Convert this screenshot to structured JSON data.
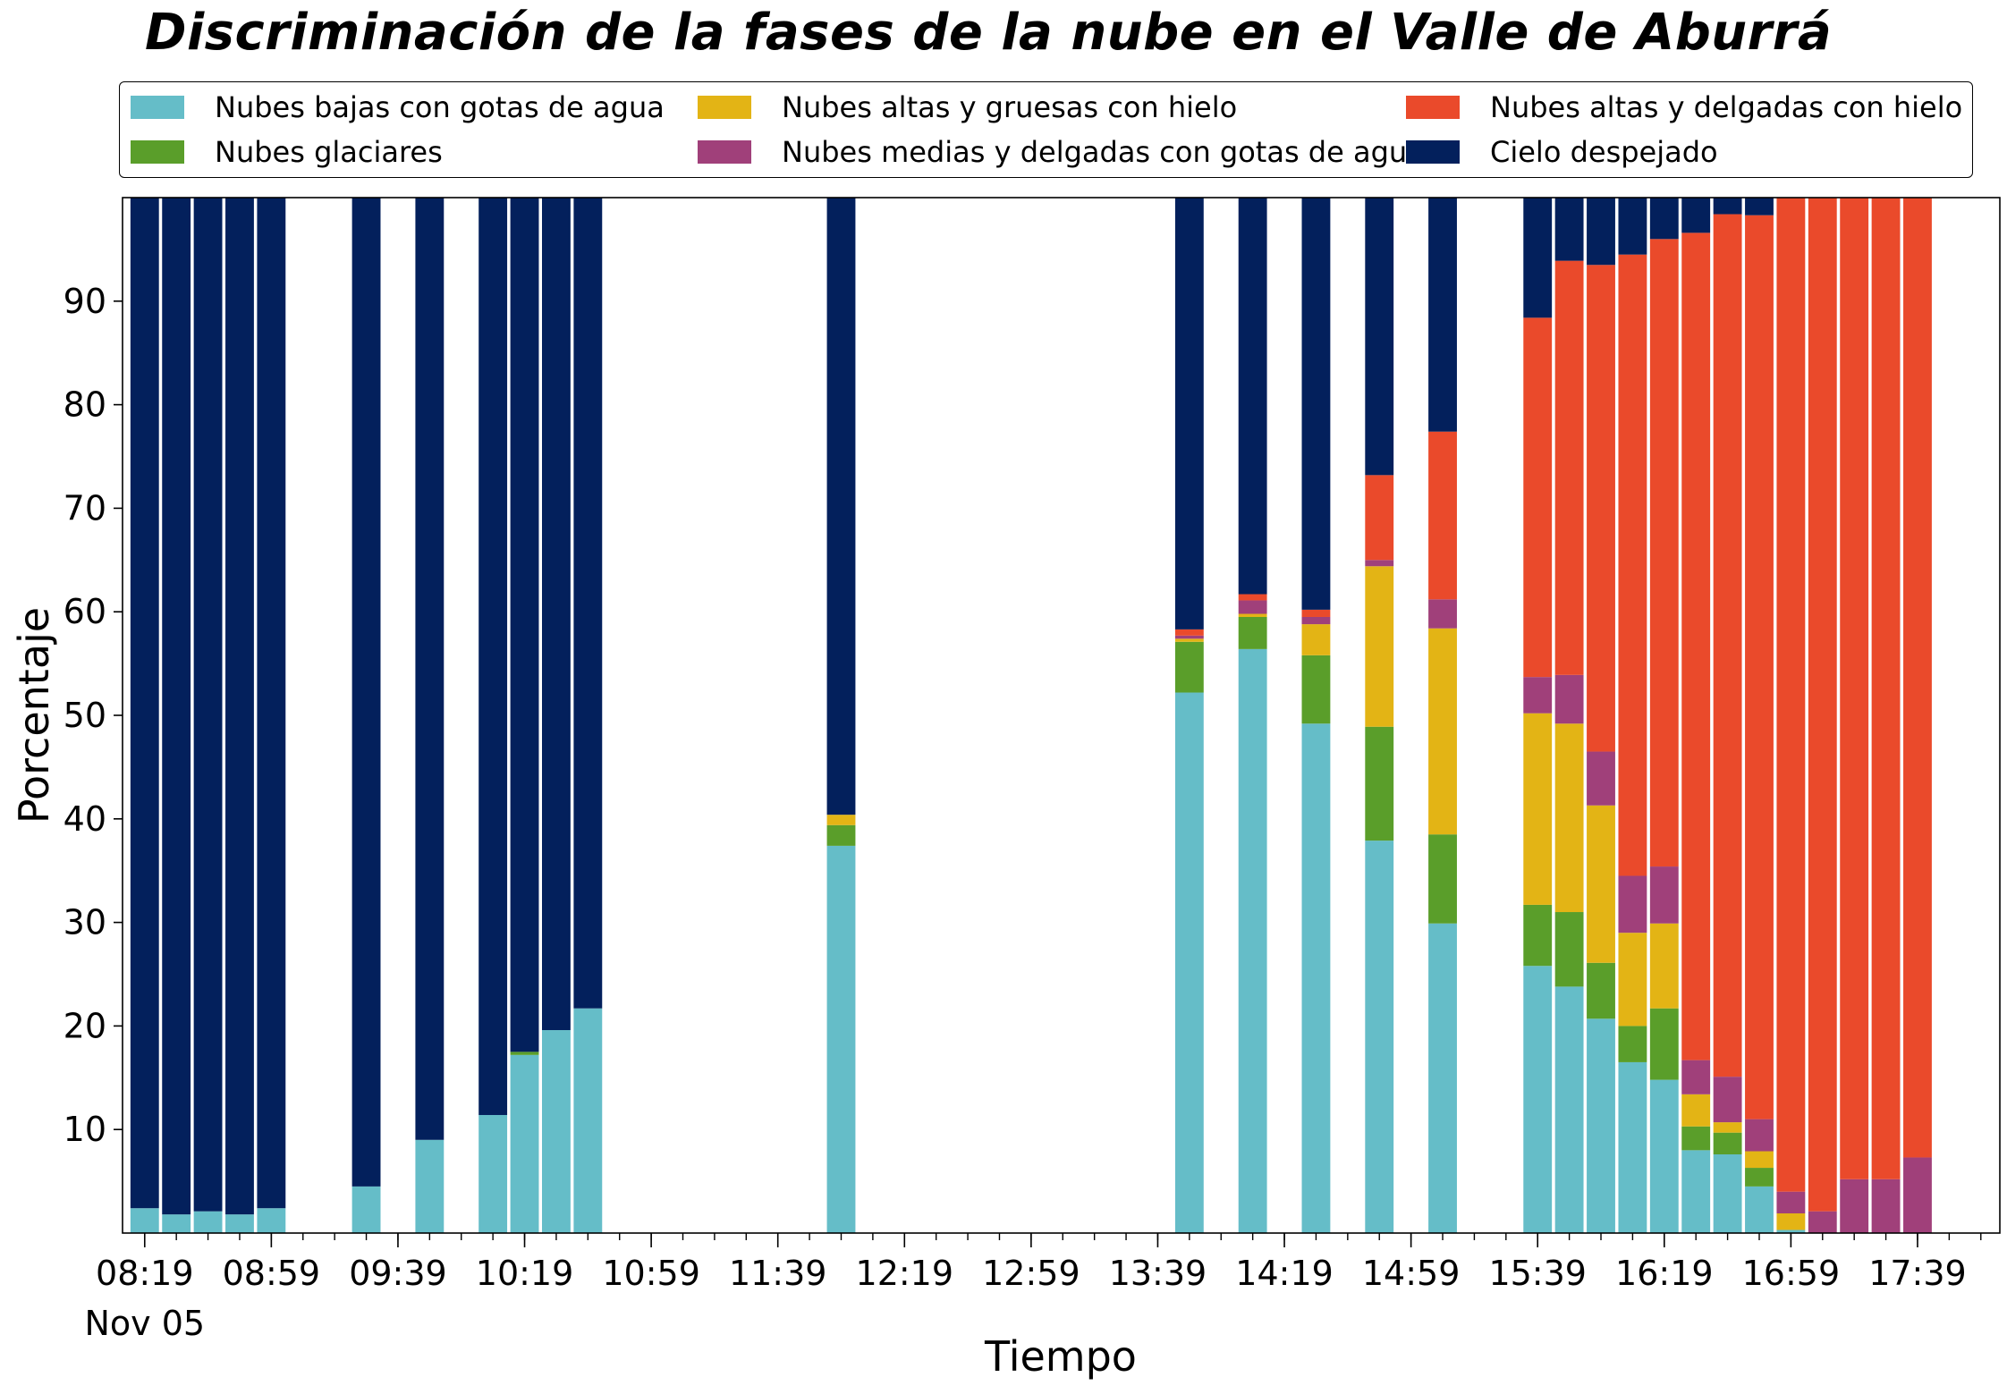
{
  "chart_data": {
    "type": "bar",
    "stacked": true,
    "title": "Discriminación de la fases de la nube en el Valle de Aburrá",
    "xlabel": "Tiempo",
    "ylabel": "Porcentaje",
    "ylim": [
      0,
      100
    ],
    "yticks": [
      10,
      20,
      30,
      40,
      50,
      60,
      70,
      80,
      90
    ],
    "x_range": [
      "08:12",
      "18:05"
    ],
    "x_tick_labels": [
      "08:19",
      "08:59",
      "09:39",
      "10:19",
      "10:59",
      "11:39",
      "12:19",
      "12:59",
      "13:39",
      "14:19",
      "14:59",
      "15:39",
      "16:19",
      "16:59",
      "17:39"
    ],
    "x_date_label": "Nov 05",
    "legend_position": "top",
    "categories": [
      "08:19",
      "08:29",
      "08:39",
      "08:49",
      "08:59",
      "09:29",
      "09:49",
      "10:09",
      "10:19",
      "10:29",
      "10:39",
      "11:59",
      "13:49",
      "14:09",
      "14:29",
      "14:49",
      "15:09",
      "15:39",
      "15:49",
      "15:59",
      "16:09",
      "16:19",
      "16:29",
      "16:39",
      "16:49",
      "16:59",
      "17:09",
      "17:19",
      "17:29",
      "17:39"
    ],
    "series": [
      {
        "name": "Nubes bajas con gotas de agua",
        "color": "#65bdc8",
        "values": [
          2.4,
          1.8,
          2.1,
          1.8,
          2.4,
          4.5,
          9.0,
          11.4,
          17.2,
          19.6,
          21.7,
          37.4,
          52.2,
          56.4,
          49.2,
          37.9,
          29.9,
          25.8,
          23.8,
          20.7,
          16.5,
          14.8,
          8.0,
          7.6,
          4.5,
          0.3,
          0.0,
          0.0,
          0.0,
          0.0
        ]
      },
      {
        "name": "Nubes glaciares",
        "color": "#5a9e2a",
        "values": [
          0,
          0,
          0,
          0,
          0,
          0,
          0,
          0,
          0.3,
          0,
          0,
          2.0,
          4.9,
          3.1,
          6.6,
          11.0,
          8.6,
          5.9,
          7.2,
          5.4,
          3.5,
          6.9,
          2.3,
          2.1,
          1.8,
          0,
          0,
          0,
          0,
          0
        ]
      },
      {
        "name": "Nubes altas y gruesas con hielo",
        "color": "#e3b415",
        "values": [
          0,
          0,
          0,
          0,
          0,
          0,
          0,
          0,
          0,
          0,
          0,
          1.0,
          0.3,
          0.3,
          3.0,
          15.5,
          19.9,
          18.5,
          18.2,
          15.2,
          9.0,
          8.2,
          3.1,
          1.0,
          1.6,
          1.6,
          0,
          0,
          0,
          0
        ]
      },
      {
        "name": "Nubes medias y delgadas con gotas de agua",
        "color": "#a0407a",
        "values": [
          0,
          0,
          0,
          0,
          0,
          0,
          0,
          0,
          0,
          0,
          0,
          0,
          0.3,
          1.3,
          0.7,
          0.6,
          2.8,
          3.5,
          4.7,
          5.2,
          5.5,
          5.5,
          3.3,
          4.4,
          3.1,
          2.1,
          2.1,
          5.2,
          5.2,
          7.3
        ]
      },
      {
        "name": "Nubes altas y delgadas con hielo",
        "color": "#ea4a2b",
        "values": [
          0,
          0,
          0,
          0,
          0,
          0,
          0,
          0,
          0,
          0,
          0,
          0,
          0.6,
          0.6,
          0.7,
          8.2,
          16.2,
          34.7,
          40.0,
          47.0,
          60.0,
          60.6,
          79.9,
          83.3,
          87.3,
          96.0,
          97.9,
          94.8,
          94.8,
          92.7
        ]
      },
      {
        "name": "Cielo despejado",
        "color": "#03205c",
        "values": [
          97.6,
          98.2,
          97.9,
          98.2,
          97.6,
          95.5,
          91.0,
          88.6,
          82.5,
          80.4,
          78.3,
          59.6,
          41.7,
          38.3,
          39.8,
          26.8,
          22.6,
          11.6,
          6.1,
          6.5,
          5.5,
          4.0,
          3.4,
          1.6,
          1.7,
          0,
          0,
          0,
          0,
          0
        ]
      }
    ]
  }
}
